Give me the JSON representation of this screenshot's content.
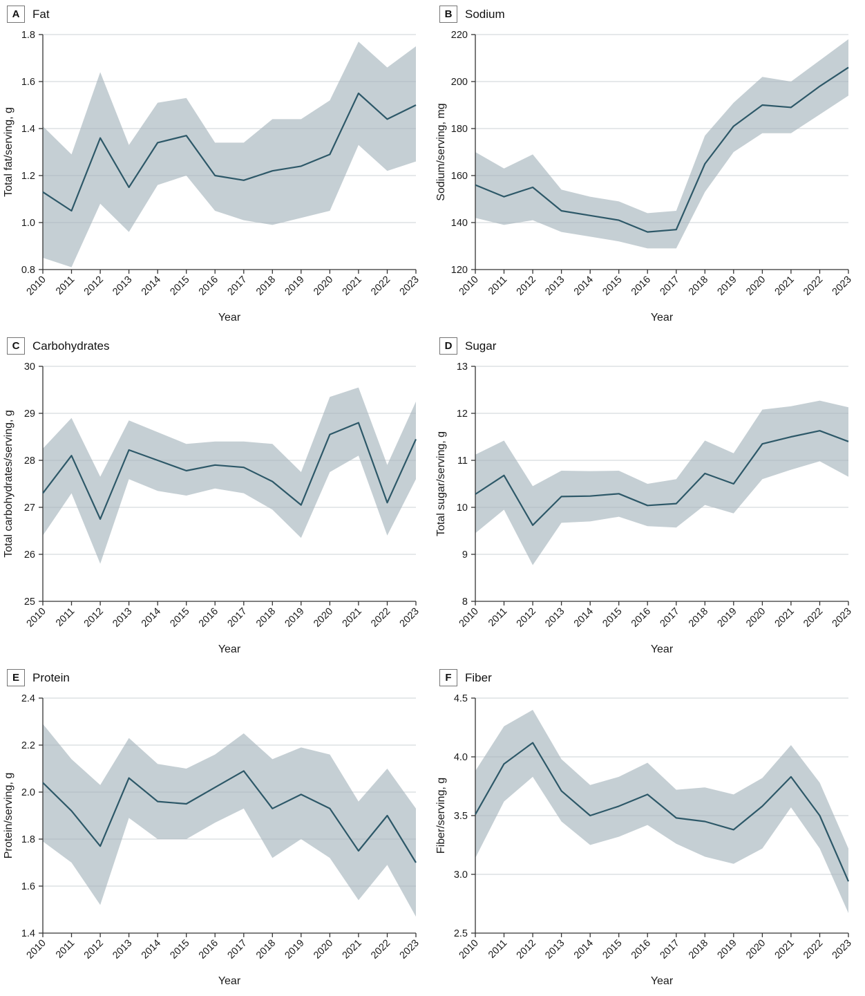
{
  "figure": {
    "background": "#ffffff",
    "x_axis_title": "Year",
    "years": [
      "2010",
      "2011",
      "2012",
      "2013",
      "2014",
      "2015",
      "2016",
      "2017",
      "2018",
      "2019",
      "2020",
      "2021",
      "2022",
      "2023"
    ]
  },
  "colors": {
    "line": "#2d5868",
    "band": "#c5cfd4",
    "grid": "#aab4ba",
    "axis": "#333333",
    "text": "#1a1a1a",
    "panel_box_border": "#757575"
  },
  "chart_data": [
    {
      "type": "line",
      "panel_label": "A",
      "title": "Fat",
      "xlabel": "Year",
      "ylabel": "Total fat/serving, g",
      "ylim": [
        0.8,
        1.8
      ],
      "yticks": [
        0.8,
        1.0,
        1.2,
        1.4,
        1.6,
        1.8
      ],
      "ytick_labels": [
        "0.8",
        "1.0",
        "1.2",
        "1.4",
        "1.6",
        "1.8"
      ],
      "grid": true,
      "legend_position": "none",
      "x": [
        "2010",
        "2011",
        "2012",
        "2013",
        "2014",
        "2015",
        "2016",
        "2017",
        "2018",
        "2019",
        "2020",
        "2021",
        "2022",
        "2023"
      ],
      "series": [
        {
          "name": "mean",
          "values": [
            1.13,
            1.05,
            1.36,
            1.15,
            1.34,
            1.37,
            1.2,
            1.18,
            1.22,
            1.24,
            1.29,
            1.55,
            1.44,
            1.5
          ]
        },
        {
          "name": "ci_lower",
          "values": [
            0.85,
            0.81,
            1.08,
            0.96,
            1.16,
            1.2,
            1.05,
            1.01,
            0.99,
            1.02,
            1.05,
            1.33,
            1.22,
            1.26
          ]
        },
        {
          "name": "ci_upper",
          "values": [
            1.41,
            1.29,
            1.64,
            1.33,
            1.51,
            1.53,
            1.34,
            1.34,
            1.44,
            1.44,
            1.52,
            1.77,
            1.66,
            1.75
          ]
        }
      ]
    },
    {
      "type": "line",
      "panel_label": "B",
      "title": "Sodium",
      "xlabel": "Year",
      "ylabel": "Sodium/serving, mg",
      "ylim": [
        120,
        220
      ],
      "yticks": [
        120,
        140,
        160,
        180,
        200,
        220
      ],
      "ytick_labels": [
        "120",
        "140",
        "160",
        "180",
        "200",
        "220"
      ],
      "grid": true,
      "legend_position": "none",
      "x": [
        "2010",
        "2011",
        "2012",
        "2013",
        "2014",
        "2015",
        "2016",
        "2017",
        "2018",
        "2019",
        "2020",
        "2021",
        "2022",
        "2023"
      ],
      "series": [
        {
          "name": "mean",
          "values": [
            156,
            151,
            155,
            145,
            143,
            141,
            136,
            137,
            165,
            181,
            190,
            189,
            198,
            206
          ]
        },
        {
          "name": "ci_lower",
          "values": [
            142,
            139,
            141,
            136,
            134,
            132,
            129,
            129,
            153,
            170,
            178,
            178,
            186,
            194
          ]
        },
        {
          "name": "ci_upper",
          "values": [
            170,
            163,
            169,
            154,
            151,
            149,
            144,
            145,
            177,
            191,
            202,
            200,
            209,
            218
          ]
        }
      ]
    },
    {
      "type": "line",
      "panel_label": "C",
      "title": "Carbohydrates",
      "xlabel": "Year",
      "ylabel": "Total carbohydrates/serving, g",
      "ylim": [
        25,
        30
      ],
      "yticks": [
        25,
        26,
        27,
        28,
        29,
        30
      ],
      "ytick_labels": [
        "25",
        "26",
        "27",
        "28",
        "29",
        "30"
      ],
      "grid": true,
      "legend_position": "none",
      "x": [
        "2010",
        "2011",
        "2012",
        "2013",
        "2014",
        "2015",
        "2016",
        "2017",
        "2018",
        "2019",
        "2020",
        "2021",
        "2022",
        "2023"
      ],
      "series": [
        {
          "name": "mean",
          "values": [
            27.3,
            28.1,
            26.75,
            28.22,
            28.0,
            27.78,
            27.9,
            27.85,
            27.55,
            27.05,
            28.55,
            28.8,
            27.1,
            28.45
          ]
        },
        {
          "name": "ci_lower",
          "values": [
            26.4,
            27.3,
            25.8,
            27.6,
            27.35,
            27.25,
            27.4,
            27.3,
            26.95,
            26.35,
            27.75,
            28.1,
            26.4,
            27.6
          ]
        },
        {
          "name": "ci_upper",
          "values": [
            28.25,
            28.9,
            27.65,
            28.85,
            28.6,
            28.35,
            28.4,
            28.4,
            28.35,
            27.75,
            29.35,
            29.55,
            27.9,
            29.25
          ]
        }
      ]
    },
    {
      "type": "line",
      "panel_label": "D",
      "title": "Sugar",
      "xlabel": "Year",
      "ylabel": "Total sugar/serving, g",
      "ylim": [
        8,
        13
      ],
      "yticks": [
        8,
        9,
        10,
        11,
        12,
        13
      ],
      "ytick_labels": [
        "8",
        "9",
        "10",
        "11",
        "12",
        "13"
      ],
      "grid": true,
      "legend_position": "none",
      "x": [
        "2010",
        "2011",
        "2012",
        "2013",
        "2014",
        "2015",
        "2016",
        "2017",
        "2018",
        "2019",
        "2020",
        "2021",
        "2022",
        "2023"
      ],
      "series": [
        {
          "name": "mean",
          "values": [
            10.28,
            10.68,
            9.62,
            10.23,
            10.24,
            10.29,
            10.04,
            10.08,
            10.72,
            10.5,
            11.35,
            11.5,
            11.63,
            11.4
          ]
        },
        {
          "name": "ci_lower",
          "values": [
            9.45,
            9.95,
            8.77,
            9.67,
            9.7,
            9.8,
            9.6,
            9.57,
            10.05,
            9.87,
            10.6,
            10.8,
            10.98,
            10.65
          ]
        },
        {
          "name": "ci_upper",
          "values": [
            11.12,
            11.42,
            10.45,
            10.78,
            10.77,
            10.78,
            10.5,
            10.6,
            11.42,
            11.15,
            12.08,
            12.15,
            12.27,
            12.13
          ]
        }
      ]
    },
    {
      "type": "line",
      "panel_label": "E",
      "title": "Protein",
      "xlabel": "Year",
      "ylabel": "Protein/serving, g",
      "ylim": [
        1.4,
        2.4
      ],
      "yticks": [
        1.4,
        1.6,
        1.8,
        2.0,
        2.2,
        2.4
      ],
      "ytick_labels": [
        "1.4",
        "1.6",
        "1.8",
        "2.0",
        "2.2",
        "2.4"
      ],
      "grid": true,
      "legend_position": "none",
      "x": [
        "2010",
        "2011",
        "2012",
        "2013",
        "2014",
        "2015",
        "2016",
        "2017",
        "2018",
        "2019",
        "2020",
        "2021",
        "2022",
        "2023"
      ],
      "series": [
        {
          "name": "mean",
          "values": [
            2.04,
            1.92,
            1.77,
            2.06,
            1.96,
            1.95,
            2.02,
            2.09,
            1.93,
            1.99,
            1.93,
            1.75,
            1.9,
            1.7
          ]
        },
        {
          "name": "ci_lower",
          "values": [
            1.79,
            1.7,
            1.52,
            1.89,
            1.8,
            1.8,
            1.87,
            1.93,
            1.72,
            1.8,
            1.72,
            1.54,
            1.69,
            1.47
          ]
        },
        {
          "name": "ci_upper",
          "values": [
            2.29,
            2.14,
            2.03,
            2.23,
            2.12,
            2.1,
            2.16,
            2.25,
            2.14,
            2.19,
            2.16,
            1.96,
            2.1,
            1.93
          ]
        }
      ]
    },
    {
      "type": "line",
      "panel_label": "F",
      "title": "Fiber",
      "xlabel": "Year",
      "ylabel": "Fiber/serving, g",
      "ylim": [
        2.5,
        4.5
      ],
      "yticks": [
        2.5,
        3.0,
        3.5,
        4.0,
        4.5
      ],
      "ytick_labels": [
        "2.5",
        "3.0",
        "3.5",
        "4.0",
        "4.5"
      ],
      "grid": true,
      "legend_position": "none",
      "x": [
        "2010",
        "2011",
        "2012",
        "2013",
        "2014",
        "2015",
        "2016",
        "2017",
        "2018",
        "2019",
        "2020",
        "2021",
        "2022",
        "2023"
      ],
      "series": [
        {
          "name": "mean",
          "values": [
            3.51,
            3.94,
            4.12,
            3.71,
            3.5,
            3.58,
            3.68,
            3.48,
            3.45,
            3.38,
            3.58,
            3.83,
            3.5,
            2.94
          ]
        },
        {
          "name": "ci_lower",
          "values": [
            3.14,
            3.62,
            3.83,
            3.45,
            3.25,
            3.32,
            3.42,
            3.26,
            3.15,
            3.09,
            3.22,
            3.57,
            3.22,
            2.67
          ]
        },
        {
          "name": "ci_upper",
          "values": [
            3.88,
            4.26,
            4.4,
            3.98,
            3.76,
            3.83,
            3.95,
            3.72,
            3.74,
            3.68,
            3.82,
            4.1,
            3.78,
            3.22
          ]
        }
      ]
    }
  ]
}
